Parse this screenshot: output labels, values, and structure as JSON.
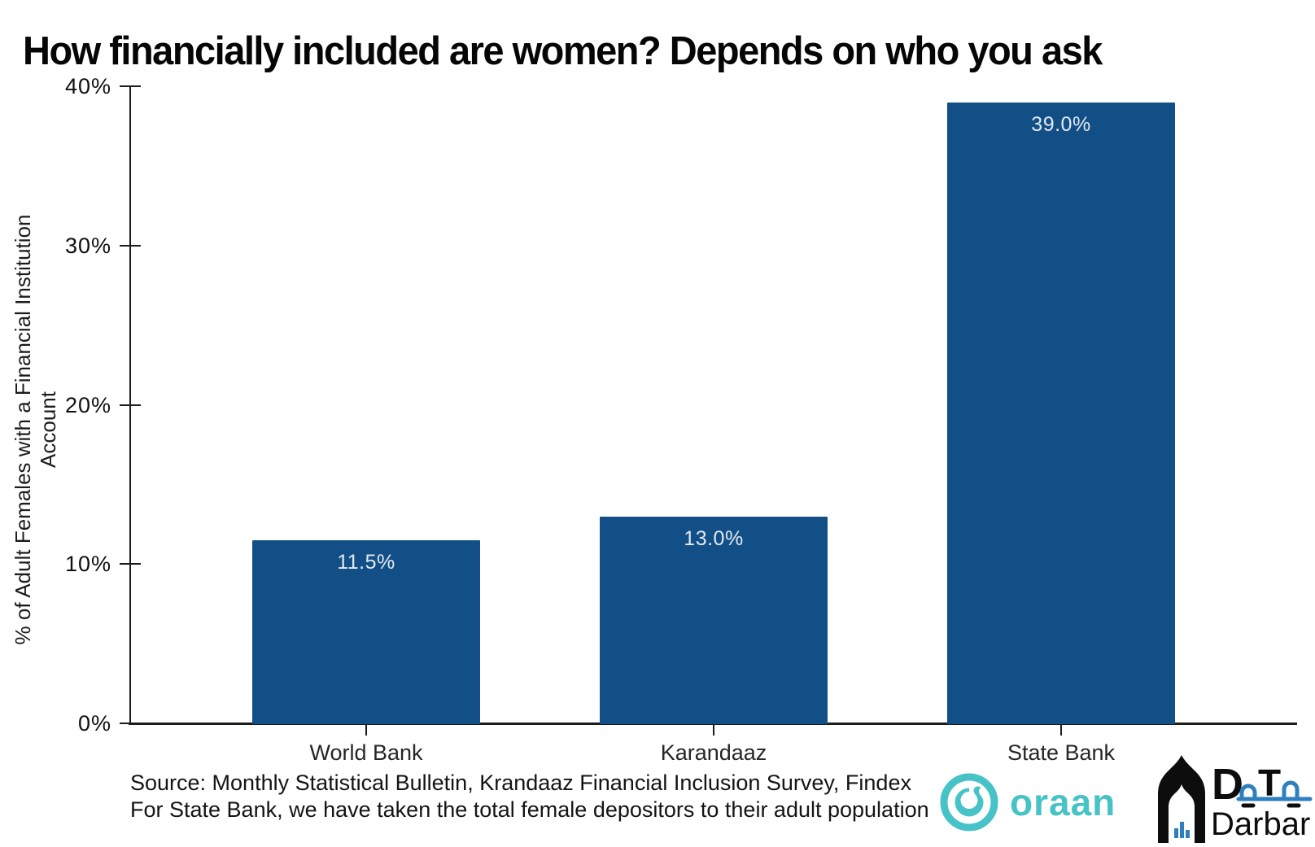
{
  "title": "How financially included are women? Depends on who you ask",
  "chart_data": {
    "type": "bar",
    "title": "How financially included are women? Depends on who you ask",
    "categories": [
      "World Bank",
      "Karandaaz",
      "State Bank"
    ],
    "values": [
      11.5,
      13.0,
      39.0
    ],
    "value_labels": [
      "11.5%",
      "13.0%",
      "39.0%"
    ],
    "xlabel": "",
    "ylabel": "% of Adult Females with a Financial Institution Account",
    "ylim": [
      0,
      40
    ],
    "ytick_values": [
      0,
      10,
      20,
      30,
      40
    ],
    "ytick_labels": [
      "0%",
      "10%",
      "20%",
      "30%",
      "40%"
    ],
    "grid": false,
    "legend": false,
    "bar_color": "#124F87",
    "bar_label_color": "#E3E9F0",
    "axis_color": "#1c1c1c"
  },
  "footer": {
    "source_line1": "Source: Monthly Statistical Bulletin, Krandaaz Financial Inclusion Survey, Findex",
    "source_line2": "For State Bank, we have taken the total female depositors to their adult population",
    "logos": {
      "oraan": {
        "wordmark": "oraan",
        "color": "#47C2C6"
      },
      "data_darbar": {
        "wordmark_top": "DaTa",
        "wordmark_bottom": "Darbar",
        "accent": "#2E7FBF",
        "ink": "#0d0d0d"
      }
    }
  }
}
